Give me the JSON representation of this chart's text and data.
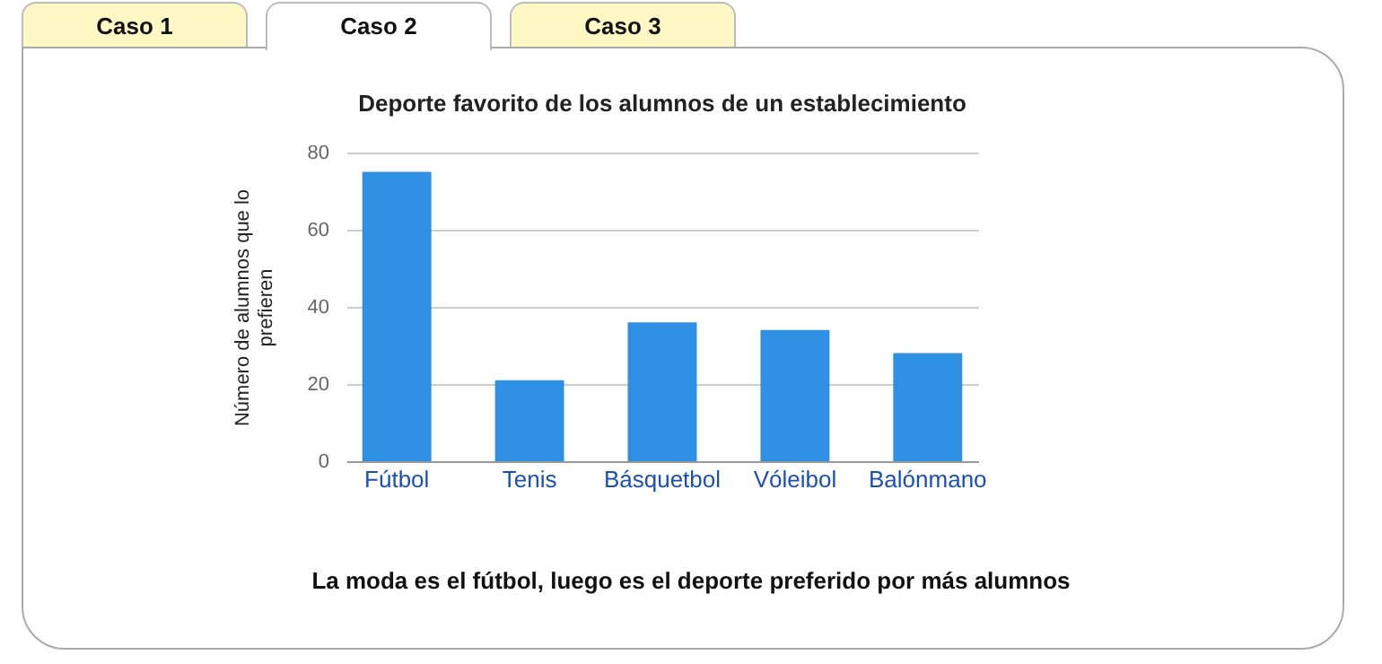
{
  "chart_data": {
    "type": "bar",
    "title": "Deporte favorito de los alumnos de un establecimiento",
    "ylabel": "Número de alumnos que lo prefieren",
    "categories": [
      "Fútbol",
      "Tenis",
      "Básquetbol",
      "Vóleibol",
      "Balónmano"
    ],
    "values": [
      75,
      21,
      36,
      34,
      28
    ],
    "color": "#2f8fe3",
    "ylim": [
      0,
      80
    ],
    "yticks": [
      0,
      20,
      40,
      60,
      80
    ],
    "grid": "y",
    "annotations": [
      "Caso 1",
      "Caso 2",
      "Caso 3",
      "La moda es el fútbol, luego es el deporte preferido por más alumnos"
    ]
  }
}
